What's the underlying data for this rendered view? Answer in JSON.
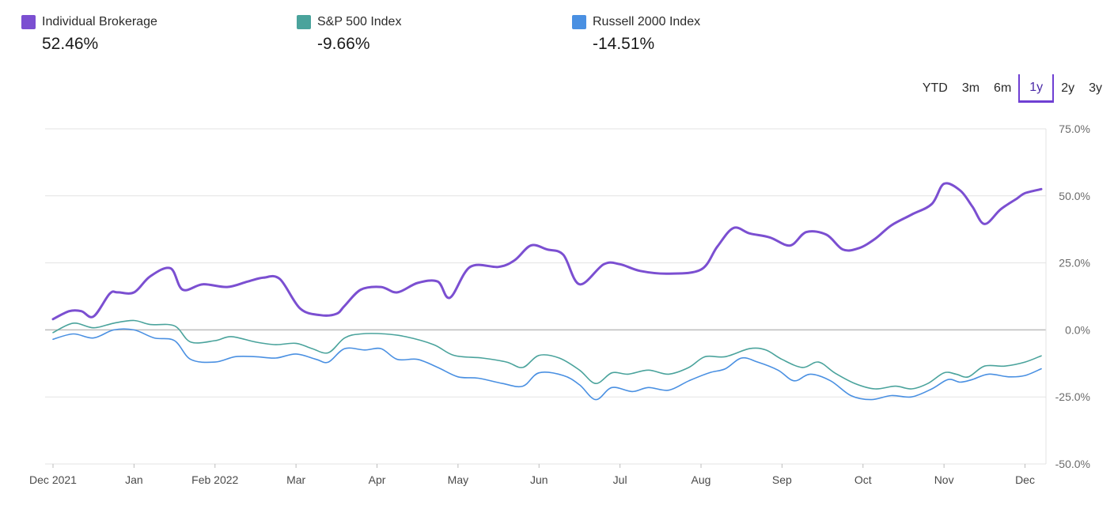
{
  "legend": [
    {
      "name": "Individual Brokerage",
      "value": "52.46%",
      "color": "#7b4fd1"
    },
    {
      "name": "S&P 500 Index",
      "value": "-9.66%",
      "color": "#4aa39c"
    },
    {
      "name": "Russell 2000 Index",
      "value": "-14.51%",
      "color": "#4a90e2"
    }
  ],
  "ranges": {
    "items": [
      "YTD",
      "3m",
      "6m",
      "1y",
      "2y",
      "3y"
    ],
    "selected": "1y"
  },
  "chart_data": {
    "type": "line",
    "x_tick_labels": [
      "Dec 2021",
      "Jan",
      "Feb 2022",
      "Mar",
      "Apr",
      "May",
      "Jun",
      "Jul",
      "Aug",
      "Sep",
      "Oct",
      "Nov",
      "Dec"
    ],
    "y_tick_labels": [
      "75.0%",
      "50.0%",
      "25.0%",
      "0.0%",
      "-25.0%",
      "-50.0%"
    ],
    "ylim": [
      -50,
      75
    ],
    "y_unit": "%",
    "grid": true,
    "legend_position": "top",
    "x_unit": "months since Dec 2021",
    "series": [
      {
        "name": "Individual Brokerage",
        "color": "#7b4fd1",
        "points": [
          [
            0,
            4
          ],
          [
            0.2,
            7
          ],
          [
            0.35,
            7
          ],
          [
            0.5,
            5
          ],
          [
            0.7,
            13.5
          ],
          [
            0.8,
            14
          ],
          [
            1.0,
            14
          ],
          [
            1.2,
            20
          ],
          [
            1.45,
            23
          ],
          [
            1.6,
            15
          ],
          [
            1.85,
            17
          ],
          [
            2.15,
            16
          ],
          [
            2.4,
            18
          ],
          [
            2.6,
            19.5
          ],
          [
            2.8,
            19
          ],
          [
            3.05,
            8
          ],
          [
            3.3,
            5.5
          ],
          [
            3.5,
            6
          ],
          [
            3.6,
            9
          ],
          [
            3.8,
            15
          ],
          [
            4.05,
            16
          ],
          [
            4.25,
            14
          ],
          [
            4.5,
            17.5
          ],
          [
            4.75,
            18
          ],
          [
            4.9,
            12
          ],
          [
            5.15,
            23.5
          ],
          [
            5.5,
            23.5
          ],
          [
            5.7,
            26
          ],
          [
            5.9,
            31.5
          ],
          [
            6.1,
            30
          ],
          [
            6.3,
            28
          ],
          [
            6.5,
            17
          ],
          [
            6.8,
            24.5
          ],
          [
            7.0,
            24.5
          ],
          [
            7.25,
            22
          ],
          [
            7.6,
            21
          ],
          [
            8.0,
            22.5
          ],
          [
            8.2,
            31
          ],
          [
            8.4,
            38
          ],
          [
            8.6,
            36
          ],
          [
            8.85,
            34.5
          ],
          [
            9.1,
            31.5
          ],
          [
            9.3,
            36.5
          ],
          [
            9.55,
            35.5
          ],
          [
            9.75,
            30
          ],
          [
            9.95,
            30.5
          ],
          [
            10.15,
            34
          ],
          [
            10.35,
            39
          ],
          [
            10.6,
            43
          ],
          [
            10.85,
            47
          ],
          [
            11.0,
            54.5
          ],
          [
            11.2,
            52
          ],
          [
            11.35,
            46
          ],
          [
            11.5,
            39.5
          ],
          [
            11.7,
            45
          ],
          [
            11.9,
            49
          ],
          [
            12.0,
            51
          ],
          [
            12.2,
            52.5
          ]
        ]
      },
      {
        "name": "S&P 500 Index",
        "color": "#4aa39c",
        "points": [
          [
            0,
            -1
          ],
          [
            0.25,
            2.5
          ],
          [
            0.5,
            0.8
          ],
          [
            0.75,
            2.5
          ],
          [
            1.0,
            3.5
          ],
          [
            1.2,
            2
          ],
          [
            1.5,
            1.5
          ],
          [
            1.7,
            -4.5
          ],
          [
            2.0,
            -4
          ],
          [
            2.2,
            -2.5
          ],
          [
            2.5,
            -4.5
          ],
          [
            2.75,
            -5.5
          ],
          [
            3.0,
            -5
          ],
          [
            3.2,
            -7
          ],
          [
            3.4,
            -8.5
          ],
          [
            3.6,
            -3
          ],
          [
            3.8,
            -1.5
          ],
          [
            4.1,
            -1.5
          ],
          [
            4.35,
            -2.5
          ],
          [
            4.7,
            -5.5
          ],
          [
            4.95,
            -9.5
          ],
          [
            5.3,
            -10.5
          ],
          [
            5.6,
            -12
          ],
          [
            5.8,
            -14
          ],
          [
            6.0,
            -9.5
          ],
          [
            6.25,
            -10.5
          ],
          [
            6.5,
            -15
          ],
          [
            6.7,
            -20
          ],
          [
            6.9,
            -16
          ],
          [
            7.1,
            -16.5
          ],
          [
            7.35,
            -15
          ],
          [
            7.6,
            -16.5
          ],
          [
            7.85,
            -14
          ],
          [
            8.05,
            -10
          ],
          [
            8.3,
            -10
          ],
          [
            8.6,
            -7
          ],
          [
            8.8,
            -7.5
          ],
          [
            9.0,
            -11
          ],
          [
            9.25,
            -14
          ],
          [
            9.45,
            -12
          ],
          [
            9.65,
            -16
          ],
          [
            9.9,
            -20
          ],
          [
            10.15,
            -22
          ],
          [
            10.4,
            -21
          ],
          [
            10.6,
            -22
          ],
          [
            10.8,
            -20
          ],
          [
            11.0,
            -16
          ],
          [
            11.15,
            -16.5
          ],
          [
            11.3,
            -17.5
          ],
          [
            11.5,
            -13.5
          ],
          [
            11.75,
            -13.5
          ],
          [
            12.0,
            -12
          ],
          [
            12.2,
            -9.66
          ]
        ]
      },
      {
        "name": "Russell 2000 Index",
        "color": "#4a90e2",
        "points": [
          [
            0,
            -3.5
          ],
          [
            0.25,
            -1.5
          ],
          [
            0.5,
            -3
          ],
          [
            0.75,
            0
          ],
          [
            1.0,
            0
          ],
          [
            1.25,
            -3
          ],
          [
            1.5,
            -4
          ],
          [
            1.7,
            -11
          ],
          [
            2.0,
            -12
          ],
          [
            2.25,
            -10
          ],
          [
            2.5,
            -10
          ],
          [
            2.75,
            -10.5
          ],
          [
            3.0,
            -9
          ],
          [
            3.25,
            -11
          ],
          [
            3.4,
            -12
          ],
          [
            3.6,
            -7
          ],
          [
            3.85,
            -7.5
          ],
          [
            4.05,
            -7
          ],
          [
            4.25,
            -11
          ],
          [
            4.5,
            -11
          ],
          [
            4.75,
            -14
          ],
          [
            5.0,
            -17.5
          ],
          [
            5.25,
            -18
          ],
          [
            5.55,
            -20
          ],
          [
            5.8,
            -21
          ],
          [
            6.0,
            -16
          ],
          [
            6.3,
            -17
          ],
          [
            6.5,
            -20.5
          ],
          [
            6.7,
            -26
          ],
          [
            6.9,
            -21.5
          ],
          [
            7.15,
            -23
          ],
          [
            7.35,
            -21.5
          ],
          [
            7.6,
            -22.5
          ],
          [
            7.85,
            -19
          ],
          [
            8.1,
            -16
          ],
          [
            8.3,
            -14.5
          ],
          [
            8.5,
            -10.5
          ],
          [
            8.7,
            -12
          ],
          [
            8.95,
            -15
          ],
          [
            9.15,
            -19
          ],
          [
            9.35,
            -16.5
          ],
          [
            9.6,
            -19
          ],
          [
            9.85,
            -24.5
          ],
          [
            10.1,
            -26
          ],
          [
            10.35,
            -24.5
          ],
          [
            10.6,
            -25
          ],
          [
            10.85,
            -22
          ],
          [
            11.05,
            -18.5
          ],
          [
            11.2,
            -19.5
          ],
          [
            11.35,
            -18.5
          ],
          [
            11.55,
            -16.5
          ],
          [
            11.8,
            -17.5
          ],
          [
            12.0,
            -17
          ],
          [
            12.2,
            -14.51
          ]
        ]
      }
    ]
  }
}
